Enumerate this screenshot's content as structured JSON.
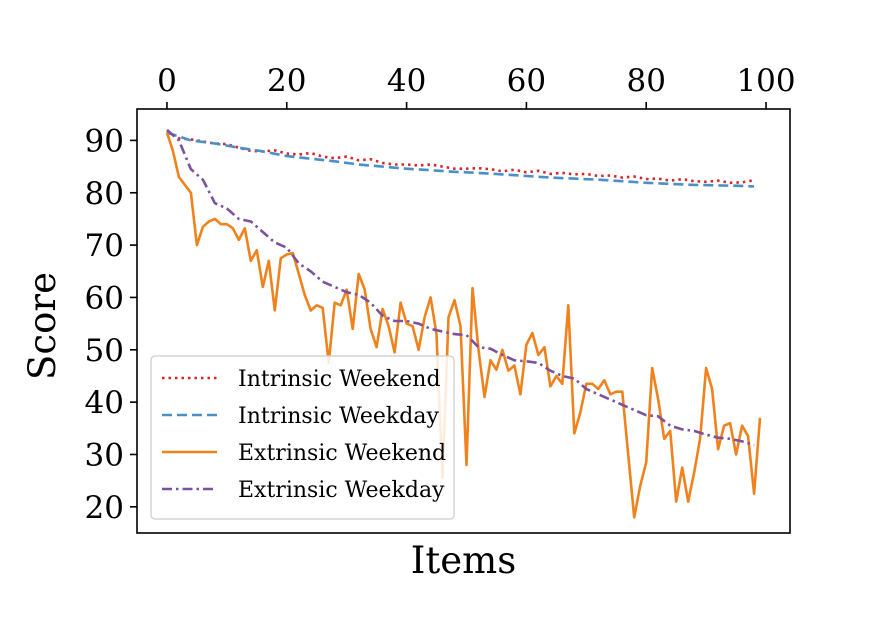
{
  "chart_data": {
    "type": "line",
    "title": "",
    "xlabel": "Items",
    "ylabel": "Score",
    "xlim": [
      -5,
      104
    ],
    "ylim": [
      15,
      96
    ],
    "xticks": [
      0,
      20,
      40,
      60,
      80,
      100
    ],
    "yticks": [
      20,
      30,
      40,
      50,
      60,
      70,
      80,
      90
    ],
    "x_axis_position": "top",
    "grid": false,
    "legend_position": "lower-left",
    "series": [
      {
        "name": "Intrinsic Weekend",
        "color": "#d62728",
        "style": "dotted",
        "x": [
          0,
          2,
          4,
          6,
          8,
          10,
          12,
          14,
          16,
          18,
          20,
          22,
          24,
          26,
          28,
          30,
          32,
          34,
          36,
          38,
          40,
          42,
          44,
          46,
          48,
          50,
          52,
          54,
          56,
          58,
          60,
          62,
          64,
          66,
          68,
          70,
          72,
          74,
          76,
          78,
          80,
          82,
          84,
          86,
          88,
          90,
          92,
          94,
          96,
          98
        ],
        "y": [
          91.8,
          90.4,
          90.2,
          89.8,
          89.4,
          89.3,
          88.6,
          88.0,
          87.9,
          88.1,
          87.5,
          87.3,
          87.6,
          86.9,
          86.6,
          86.9,
          86.2,
          86.4,
          85.7,
          85.4,
          85.4,
          85.2,
          85.4,
          85.0,
          84.6,
          84.6,
          84.7,
          84.5,
          84.1,
          84.4,
          83.9,
          84.2,
          83.6,
          83.8,
          83.5,
          83.6,
          83.2,
          83.3,
          82.9,
          83.1,
          82.6,
          82.7,
          82.3,
          82.6,
          82.2,
          82.1,
          82.3,
          81.9,
          82.0,
          82.4
        ]
      },
      {
        "name": "Intrinsic Weekday",
        "color": "#4a90c8",
        "style": "dashed",
        "x": [
          0,
          4,
          8,
          12,
          16,
          20,
          24,
          28,
          32,
          36,
          40,
          44,
          48,
          52,
          56,
          60,
          64,
          68,
          72,
          76,
          80,
          84,
          88,
          92,
          96,
          98
        ],
        "y": [
          91.5,
          90.0,
          89.4,
          88.6,
          87.9,
          87.0,
          86.5,
          86.0,
          85.4,
          85.0,
          84.6,
          84.3,
          84.0,
          83.8,
          83.5,
          83.2,
          82.9,
          82.7,
          82.5,
          82.2,
          81.9,
          81.7,
          81.5,
          81.4,
          81.3,
          81.2
        ]
      },
      {
        "name": "Extrinsic Weekend",
        "color": "#f0821e",
        "style": "solid",
        "x": [
          0,
          1,
          2,
          3,
          4,
          5,
          6,
          7,
          8,
          9,
          10,
          11,
          12,
          13,
          14,
          15,
          16,
          17,
          18,
          19,
          20,
          21,
          22,
          23,
          24,
          25,
          26,
          27,
          28,
          29,
          30,
          31,
          32,
          33,
          34,
          35,
          36,
          37,
          38,
          39,
          40,
          41,
          42,
          43,
          44,
          45,
          46,
          47,
          48,
          49,
          50,
          51,
          52,
          53,
          54,
          55,
          56,
          57,
          58,
          59,
          60,
          61,
          62,
          63,
          64,
          65,
          66,
          67,
          68,
          69,
          70,
          71,
          72,
          73,
          74,
          75,
          76,
          77,
          78,
          79,
          80,
          81,
          82,
          83,
          84,
          85,
          86,
          87,
          88,
          89,
          90,
          91,
          92,
          93,
          94,
          95,
          96,
          97,
          98,
          99
        ],
        "y": [
          91.5,
          88.0,
          83.0,
          81.5,
          80.0,
          70.0,
          73.5,
          74.5,
          75.0,
          74.0,
          74.0,
          73.2,
          71.0,
          73.2,
          67.0,
          69.0,
          62.0,
          67.0,
          57.5,
          67.5,
          68.2,
          68.5,
          64.5,
          60.5,
          57.5,
          58.5,
          58.0,
          47.5,
          59.0,
          58.5,
          61.5,
          54.0,
          64.5,
          61.5,
          54.0,
          50.5,
          57.8,
          54.5,
          49.5,
          59.0,
          55.0,
          54.5,
          50.0,
          56.2,
          60.0,
          53.0,
          25.5,
          56.2,
          59.5,
          54.5,
          28.0,
          61.8,
          50.0,
          41.0,
          48.0,
          46.2,
          50.0,
          46.0,
          47.0,
          41.5,
          51.0,
          53.2,
          49.0,
          50.5,
          43.0,
          45.0,
          43.5,
          58.5,
          34.0,
          38.0,
          43.5,
          43.5,
          42.5,
          44.2,
          41.5,
          42.0,
          42.0,
          30.0,
          18.0,
          24.0,
          28.5,
          46.5,
          40.5,
          33.0,
          34.5,
          21.0,
          27.5,
          21.0,
          26.5,
          33.0,
          46.5,
          42.5,
          31.0,
          35.5,
          36.0,
          30.0,
          35.5,
          33.5,
          22.5,
          37.0
        ]
      },
      {
        "name": "Extrinsic Weekday",
        "color": "#7b52a0",
        "style": "dashdot",
        "x": [
          0,
          2,
          4,
          6,
          8,
          10,
          12,
          14,
          16,
          18,
          20,
          22,
          24,
          26,
          28,
          30,
          32,
          34,
          36,
          38,
          40,
          42,
          44,
          46,
          48,
          50,
          52,
          54,
          56,
          58,
          60,
          62,
          64,
          66,
          68,
          70,
          72,
          74,
          76,
          78,
          80,
          82,
          84,
          86,
          88,
          90,
          92,
          94,
          96,
          98
        ],
        "y": [
          92.0,
          90.0,
          84.5,
          82.5,
          78.0,
          77.0,
          75.0,
          74.5,
          72.5,
          70.5,
          69.5,
          66.5,
          65.0,
          63.0,
          62.0,
          61.0,
          60.5,
          59.0,
          56.5,
          55.5,
          55.5,
          55.0,
          54.0,
          53.5,
          53.0,
          52.8,
          50.5,
          50.2,
          49.0,
          48.0,
          47.8,
          47.5,
          46.0,
          45.0,
          44.5,
          42.5,
          41.5,
          40.5,
          39.5,
          38.5,
          37.5,
          37.3,
          35.5,
          34.8,
          34.5,
          33.8,
          33.2,
          33.0,
          32.5,
          31.8
        ]
      }
    ]
  }
}
